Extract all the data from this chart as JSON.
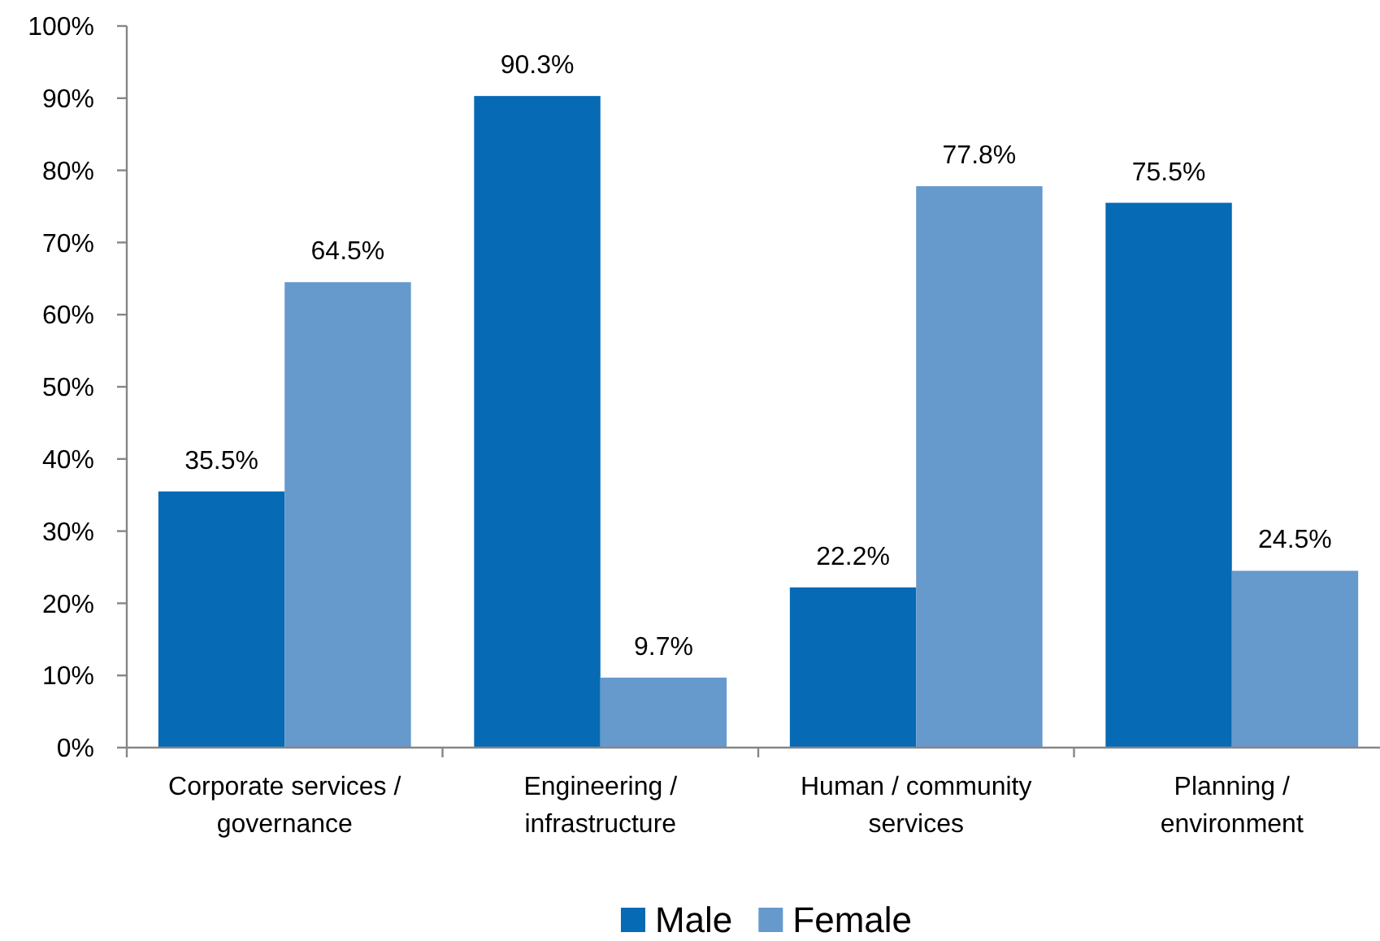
{
  "chart_data": {
    "type": "bar",
    "categories": [
      "Corporate services / governance",
      "Engineering / infrastructure",
      "Human / community services",
      "Planning / environment"
    ],
    "series": [
      {
        "name": "Male",
        "color": "#066ab4",
        "values": [
          35.5,
          90.3,
          22.2,
          75.5
        ],
        "value_labels": [
          "35.5%",
          "90.3%",
          "22.2%",
          "75.5%"
        ]
      },
      {
        "name": "Female",
        "color": "#6699cc",
        "values": [
          64.5,
          9.7,
          77.8,
          24.5
        ],
        "value_labels": [
          "64.5%",
          "9.7%",
          "77.8%",
          "24.5%"
        ]
      }
    ],
    "ylim": [
      0,
      100
    ],
    "yticks": [
      {
        "value": 0,
        "label": "0%"
      },
      {
        "value": 10,
        "label": "10%"
      },
      {
        "value": 20,
        "label": "20%"
      },
      {
        "value": 30,
        "label": "30%"
      },
      {
        "value": 40,
        "label": "40%"
      },
      {
        "value": 50,
        "label": "50%"
      },
      {
        "value": 60,
        "label": "60%"
      },
      {
        "value": 70,
        "label": "70%"
      },
      {
        "value": 80,
        "label": "80%"
      },
      {
        "value": 90,
        "label": "90%"
      },
      {
        "value": 100,
        "label": "100%"
      }
    ],
    "grid": false,
    "legend": "bottom"
  }
}
